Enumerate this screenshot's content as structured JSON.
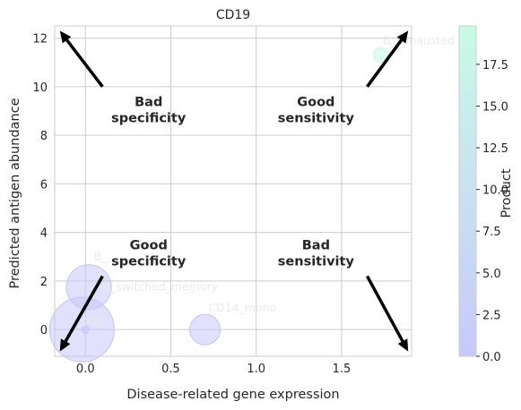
{
  "chart_data": {
    "type": "scatter",
    "title": "CD19",
    "xlabel": "Disease-related gene expression",
    "ylabel": "Predicted antigen abundance",
    "xlim": [
      -0.18,
      1.91
    ],
    "ylim": [
      -1.1,
      12.5
    ],
    "x_ticks": [
      {
        "value": 0.0,
        "label": "0.0"
      },
      {
        "value": 0.5,
        "label": "0.5"
      },
      {
        "value": 1.0,
        "label": "1.0"
      },
      {
        "value": 1.5,
        "label": "1.5"
      }
    ],
    "y_ticks": [
      {
        "value": 0,
        "label": "0"
      },
      {
        "value": 2,
        "label": "2"
      },
      {
        "value": 4,
        "label": "4"
      },
      {
        "value": 6,
        "label": "6"
      },
      {
        "value": 8,
        "label": "8"
      },
      {
        "value": 10,
        "label": "10"
      },
      {
        "value": 12,
        "label": "12"
      }
    ],
    "grid": true,
    "color_scale": {
      "label": "Product",
      "min": 0.0,
      "max": 19.8,
      "low_color": "#c8c8fb",
      "high_color": "#c8fbe6",
      "ticks": [
        {
          "value": 0.0,
          "label": "0.0"
        },
        {
          "value": 2.5,
          "label": "2.5"
        },
        {
          "value": 5.0,
          "label": "5.0"
        },
        {
          "value": 7.5,
          "label": "7.5"
        },
        {
          "value": 10.0,
          "label": "10.0"
        },
        {
          "value": 12.5,
          "label": "12.5"
        },
        {
          "value": 15.0,
          "label": "15.0"
        },
        {
          "value": 17.5,
          "label": "17.5"
        }
      ]
    },
    "points": [
      {
        "label": "pDC",
        "x": -0.02,
        "y": 0.0,
        "size": 36,
        "product": 0.0
      },
      {
        "label": "B_switched_memory",
        "x": 0.02,
        "y": 1.75,
        "size": 25,
        "product": 0.1
      },
      {
        "label": "CD14_mono",
        "x": 0.7,
        "y": 0.0,
        "size": 17,
        "product": 0.0
      },
      {
        "label": "",
        "x": 0.0,
        "y": 0.0,
        "size": 4,
        "product": 0.0
      },
      {
        "label": "B_exhausted",
        "x": 1.73,
        "y": 11.3,
        "size": 8,
        "product": 19.6
      }
    ],
    "point_labels": [
      {
        "text": "pDC",
        "x": -0.02,
        "y": 0.2
      },
      {
        "text": "B_switched_memory",
        "x": 0.1,
        "y": 1.6
      },
      {
        "text": "CD14_mono",
        "x": 0.72,
        "y": 0.75
      },
      {
        "text": "B_",
        "x": 0.05,
        "y": 2.85
      },
      {
        "text": "B_exhausted",
        "x": 1.74,
        "y": 11.75
      }
    ],
    "annotations": [
      {
        "text": "Bad\nspecificity",
        "x": 0.37,
        "y": 9.2
      },
      {
        "text": "Good\nsensitivity",
        "x": 1.35,
        "y": 9.2
      },
      {
        "text": "Good\nspecificity",
        "x": 0.37,
        "y": 3.3
      },
      {
        "text": "Bad\nsensitivity",
        "x": 1.35,
        "y": 3.3
      }
    ],
    "arrows": [
      {
        "from": [
          0.1,
          10.0
        ],
        "to": [
          -0.15,
          12.3
        ]
      },
      {
        "from": [
          1.65,
          10.0
        ],
        "to": [
          1.89,
          12.3
        ]
      },
      {
        "from": [
          0.1,
          2.2
        ],
        "to": [
          -0.15,
          -0.9
        ]
      },
      {
        "from": [
          1.65,
          2.2
        ],
        "to": [
          1.89,
          -0.9
        ]
      }
    ]
  }
}
